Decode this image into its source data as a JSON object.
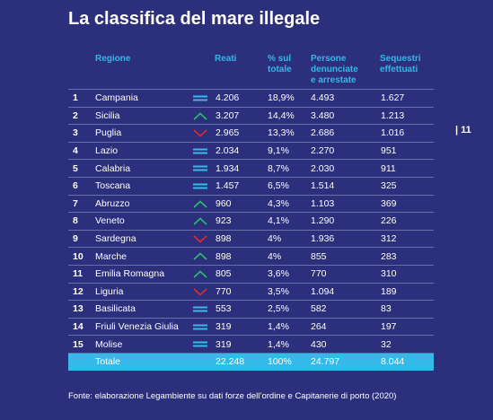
{
  "title": "La classifica del mare illegale",
  "page_number": "| 11",
  "headers": {
    "regione": "Regione",
    "reati": "Reati",
    "perc1": "% sul",
    "perc2": "totale",
    "persone1": "Persone",
    "persone2": "denunciate",
    "persone3": "e arrestate",
    "sequestri1": "Sequestri",
    "sequestri2": "effettuati"
  },
  "colors": {
    "up": "#2dbf6a",
    "down": "#e02b2b",
    "equal": "#35b9e8"
  },
  "rows": [
    {
      "rank": "1",
      "region": "Campania",
      "trend": "equal",
      "reati": "4.206",
      "perc": "18,9%",
      "persone": "4.493",
      "sequestri": "1.627"
    },
    {
      "rank": "2",
      "region": "Sicilia",
      "trend": "up",
      "reati": "3.207",
      "perc": "14,4%",
      "persone": "3.480",
      "sequestri": "1.213"
    },
    {
      "rank": "3",
      "region": "Puglia",
      "trend": "down",
      "reati": "2.965",
      "perc": "13,3%",
      "persone": "2.686",
      "sequestri": "1.016"
    },
    {
      "rank": "4",
      "region": "Lazio",
      "trend": "equal",
      "reati": "2.034",
      "perc": "9,1%",
      "persone": "2.270",
      "sequestri": "951"
    },
    {
      "rank": "5",
      "region": "Calabria",
      "trend": "equal",
      "reati": "1.934",
      "perc": "8,7%",
      "persone": "2.030",
      "sequestri": "911"
    },
    {
      "rank": "6",
      "region": "Toscana",
      "trend": "equal",
      "reati": "1.457",
      "perc": "6,5%",
      "persone": "1.514",
      "sequestri": "325"
    },
    {
      "rank": "7",
      "region": "Abruzzo",
      "trend": "up",
      "reati": "960",
      "perc": "4,3%",
      "persone": "1.103",
      "sequestri": "369"
    },
    {
      "rank": "8",
      "region": "Veneto",
      "trend": "up",
      "reati": "923",
      "perc": "4,1%",
      "persone": "1.290",
      "sequestri": "226"
    },
    {
      "rank": "9",
      "region": "Sardegna",
      "trend": "down",
      "reati": "898",
      "perc": "4%",
      "persone": "1.936",
      "sequestri": "312"
    },
    {
      "rank": "10",
      "region": "Marche",
      "trend": "up",
      "reati": "898",
      "perc": "4%",
      "persone": "855",
      "sequestri": "283"
    },
    {
      "rank": "11",
      "region": "Emilia Romagna",
      "trend": "up",
      "reati": "805",
      "perc": "3,6%",
      "persone": "770",
      "sequestri": "310"
    },
    {
      "rank": "12",
      "region": "Liguria",
      "trend": "down",
      "reati": "770",
      "perc": "3,5%",
      "persone": "1.094",
      "sequestri": "189"
    },
    {
      "rank": "13",
      "region": "Basilicata",
      "trend": "equal",
      "reati": "553",
      "perc": "2,5%",
      "persone": "582",
      "sequestri": "83"
    },
    {
      "rank": "14",
      "region": "Friuli Venezia Giulia",
      "trend": "equal",
      "reati": "319",
      "perc": "1,4%",
      "persone": "264",
      "sequestri": "197"
    },
    {
      "rank": "15",
      "region": "Molise",
      "trend": "equal",
      "reati": "319",
      "perc": "1,4%",
      "persone": "430",
      "sequestri": "32"
    }
  ],
  "total": {
    "label": "Totale",
    "reati": "22.248",
    "perc": "100%",
    "persone": "24.797",
    "sequestri": "8.044"
  },
  "footer": "Fonte: elaborazione Legambiente su dati forze dell’ordine e Capitanerie di porto (2020)"
}
